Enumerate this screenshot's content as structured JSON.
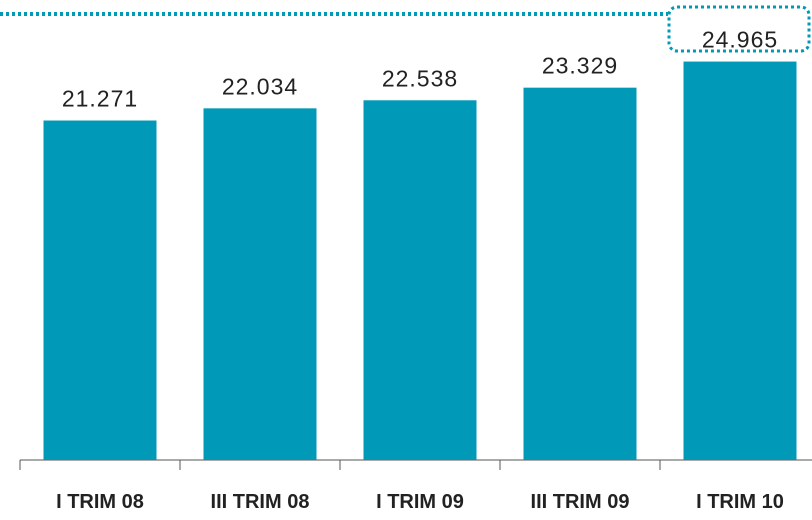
{
  "chart_data": {
    "type": "bar",
    "categories": [
      "I TRIM 08",
      "III TRIM 08",
      "I TRIM 09",
      "III TRIM 09",
      "I TRIM 10"
    ],
    "values": [
      21.271,
      22.034,
      22.538,
      23.329,
      24.965
    ],
    "color": "#0099b8",
    "ylim": [
      0,
      25
    ]
  }
}
